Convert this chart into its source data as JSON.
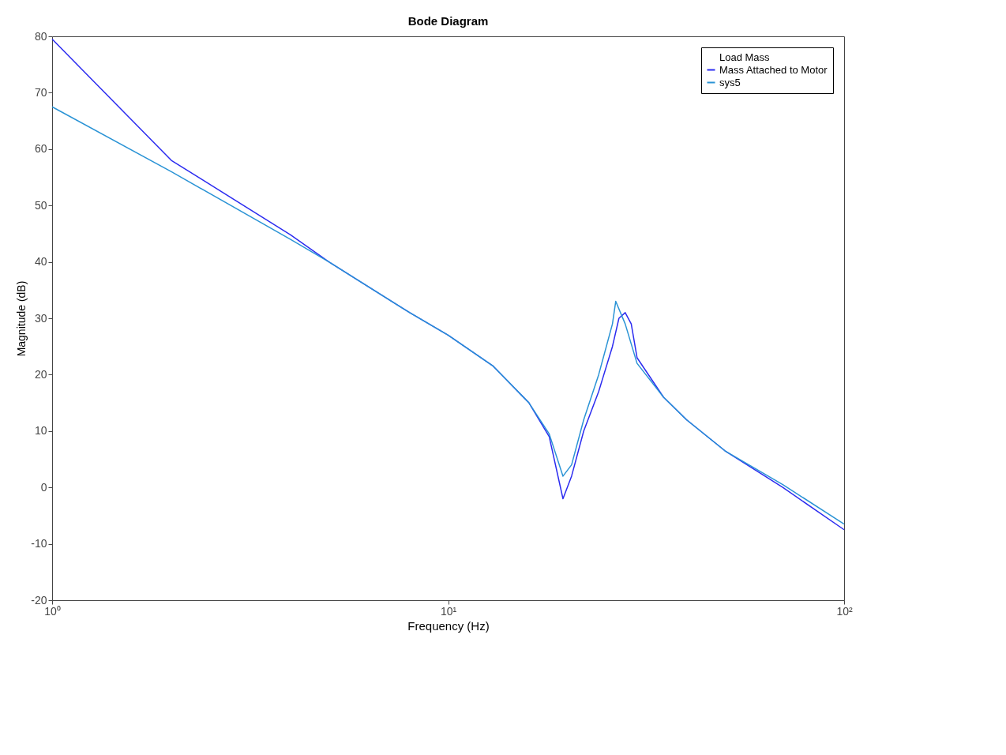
{
  "chart_data": {
    "type": "line",
    "title": "Bode Diagram",
    "xlabel": "Frequency  (Hz)",
    "ylabel": "Magnitude (dB)",
    "log": "x",
    "xlim": [
      1,
      100
    ],
    "xticks": [
      {
        "value": 1,
        "label": "10⁰"
      },
      {
        "value": 10,
        "label": "10¹"
      },
      {
        "value": 100,
        "label": "10²"
      }
    ],
    "ylim": [
      -20,
      80
    ],
    "yticks": [
      -20,
      -10,
      0,
      10,
      20,
      30,
      40,
      50,
      60,
      70,
      80
    ],
    "grid": false,
    "legend": "top right",
    "line_style": "solid",
    "marker": "none",
    "series": [
      {
        "name": "Load Mass"
      },
      {
        "name": "Mass Attached to Motor",
        "color": "#2b2bf0",
        "x": [
          1,
          2,
          4,
          5,
          6,
          8,
          10,
          13,
          16,
          18,
          19.5,
          20.5,
          22,
          24,
          26,
          27,
          28,
          29,
          30,
          35,
          40,
          50,
          70,
          100
        ],
        "values": [
          79.5,
          58,
          44.8,
          40,
          36.5,
          31,
          27,
          21.5,
          15,
          9,
          -2,
          2,
          10,
          17,
          25,
          30,
          31,
          29,
          23,
          16,
          12,
          6.5,
          0,
          -7.5
        ]
      },
      {
        "name": "sys5",
        "color": "#2a93d5",
        "x": [
          1,
          2,
          4,
          5,
          6,
          8,
          10,
          13,
          16,
          18,
          19.5,
          20.5,
          22,
          24,
          26,
          26.5,
          28,
          30,
          35,
          40,
          50,
          70,
          100
        ],
        "values": [
          67.5,
          56,
          44,
          40,
          36.5,
          31,
          27,
          21.5,
          15,
          9.5,
          2,
          4,
          12,
          20,
          29,
          33,
          29,
          22,
          16,
          12,
          6.5,
          0.5,
          -6.5
        ]
      }
    ]
  }
}
